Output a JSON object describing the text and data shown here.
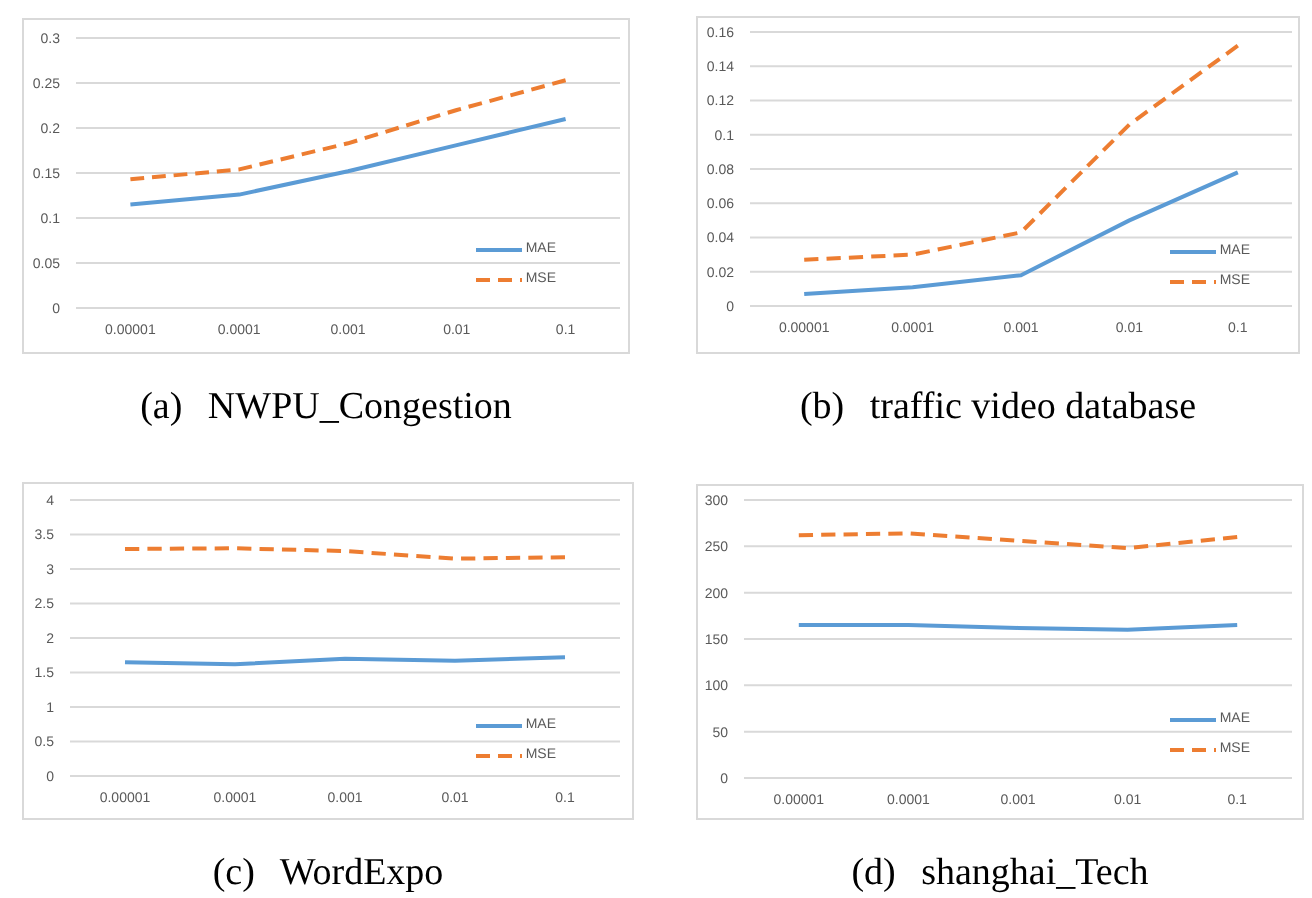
{
  "chart_data": [
    {
      "type": "line",
      "title": "(a) NWPU_Congestion",
      "categories": [
        "0.00001",
        "0.0001",
        "0.001",
        "0.01",
        "0.1"
      ],
      "series": [
        {
          "name": "MAE",
          "color": "#5b9bd5",
          "line_style": "solid",
          "values": [
            0.115,
            0.126,
            0.152,
            0.181,
            0.21
          ]
        },
        {
          "name": "MSE",
          "color": "#ed7d31",
          "line_style": "dashed",
          "values": [
            0.143,
            0.154,
            0.183,
            0.22,
            0.253
          ]
        }
      ],
      "ylim": [
        0,
        0.3
      ],
      "yticks": [
        0,
        0.05,
        0.1,
        0.15,
        0.2,
        0.25,
        0.3
      ],
      "grid": "y",
      "legend": "bottom right"
    },
    {
      "type": "line",
      "title": "(b) traffic video database",
      "categories": [
        "0.00001",
        "0.0001",
        "0.001",
        "0.01",
        "0.1"
      ],
      "series": [
        {
          "name": "MAE",
          "color": "#5b9bd5",
          "line_style": "solid",
          "values": [
            0.007,
            0.011,
            0.018,
            0.05,
            0.078
          ]
        },
        {
          "name": "MSE",
          "color": "#ed7d31",
          "line_style": "dashed",
          "values": [
            0.027,
            0.03,
            0.043,
            0.106,
            0.152
          ]
        }
      ],
      "ylim": [
        0,
        0.16
      ],
      "yticks": [
        0,
        0.02,
        0.04,
        0.06,
        0.08,
        0.1,
        0.12,
        0.14,
        0.16
      ],
      "grid": "y",
      "legend": "bottom right"
    },
    {
      "type": "line",
      "title": "(c) WordExpo",
      "categories": [
        "0.00001",
        "0.0001",
        "0.001",
        "0.01",
        "0.1"
      ],
      "series": [
        {
          "name": "MAE",
          "color": "#5b9bd5",
          "line_style": "solid",
          "values": [
            1.65,
            1.62,
            1.7,
            1.67,
            1.72
          ]
        },
        {
          "name": "MSE",
          "color": "#ed7d31",
          "line_style": "dashed",
          "values": [
            3.29,
            3.3,
            3.26,
            3.15,
            3.17
          ]
        }
      ],
      "ylim": [
        0,
        4
      ],
      "yticks": [
        0,
        0.5,
        1,
        1.5,
        2,
        2.5,
        3,
        3.5,
        4
      ],
      "grid": "y",
      "legend": "bottom right"
    },
    {
      "type": "line",
      "title": "(d) shanghai_Tech",
      "categories": [
        "0.00001",
        "0.0001",
        "0.001",
        "0.01",
        "0.1"
      ],
      "series": [
        {
          "name": "MAE",
          "color": "#5b9bd5",
          "line_style": "solid",
          "values": [
            165,
            165,
            162,
            160,
            165
          ]
        },
        {
          "name": "MSE",
          "color": "#ed7d31",
          "line_style": "dashed",
          "values": [
            262,
            264,
            256,
            248,
            260
          ]
        }
      ],
      "ylim": [
        0,
        300
      ],
      "yticks": [
        0,
        50,
        100,
        150,
        200,
        250,
        300
      ],
      "grid": "y",
      "legend": "bottom right"
    }
  ]
}
